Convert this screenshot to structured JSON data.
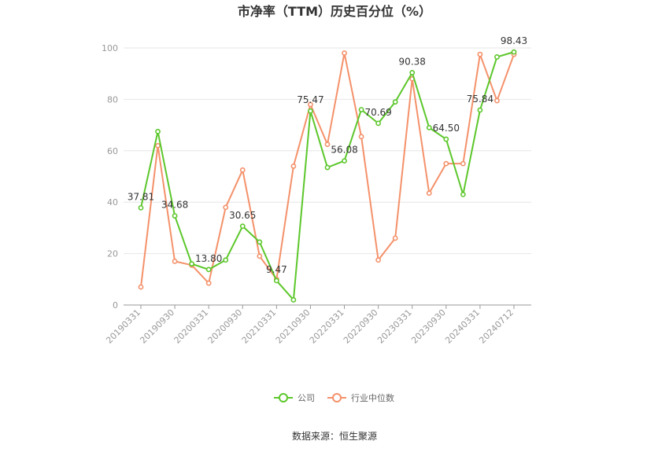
{
  "chart_data": {
    "type": "line",
    "title": "市净率（TTM）历史百分位（%）",
    "ylim": [
      0,
      100
    ],
    "yticks": [
      0,
      20,
      40,
      60,
      80,
      100
    ],
    "grid": true,
    "legend_position": "bottom",
    "x": [
      "20190331",
      "20190630",
      "20190930",
      "20191231",
      "20200331",
      "20200630",
      "20200930",
      "20201231",
      "20210331",
      "20210630",
      "20210930",
      "20211231",
      "20220331",
      "20220630",
      "20220930",
      "20221231",
      "20230331",
      "20230630",
      "20230930",
      "20231231",
      "20240331",
      "20240630",
      "20240712"
    ],
    "xtick_labels": [
      "20190331",
      "20190930",
      "20200331",
      "20200930",
      "20210331",
      "20210930",
      "20220331",
      "20220930",
      "20230331",
      "20230930",
      "20240331",
      "20240712"
    ],
    "series": [
      {
        "name": "公司",
        "color": "#5cc72b",
        "values": [
          37.81,
          67.5,
          34.68,
          16.0,
          13.8,
          17.5,
          30.65,
          24.5,
          9.47,
          2.0,
          75.47,
          53.5,
          56.08,
          76.0,
          70.69,
          79.0,
          90.38,
          69.0,
          64.5,
          43.0,
          75.84,
          96.5,
          98.43
        ],
        "labels": {
          "0": "37.81",
          "2": "34.68",
          "4": "13.80",
          "6": "30.65",
          "8": "9.47",
          "10": "75.47",
          "12": "56.08",
          "14": "70.69",
          "16": "90.38",
          "18": "64.50",
          "20": "75.84",
          "22": "98.43"
        }
      },
      {
        "name": "行业中位数",
        "color": "#f4916a",
        "values": [
          7.0,
          62.0,
          17.0,
          15.5,
          8.5,
          38.0,
          52.5,
          19.0,
          10.0,
          54.0,
          78.0,
          62.5,
          98.0,
          65.5,
          17.5,
          26.0,
          88.0,
          43.5,
          55.0,
          55.0,
          97.5,
          79.5,
          97.5
        ]
      }
    ]
  },
  "source": "数据来源：恒生聚源"
}
